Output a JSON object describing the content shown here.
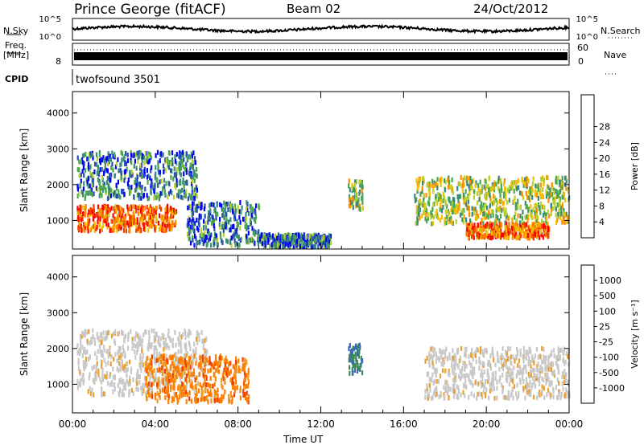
{
  "header": {
    "station": "Prince George (fitACF)",
    "beam": "Beam 02",
    "date": "24/Oct/2012"
  },
  "strip": {
    "nsky_label": "N.Sky",
    "nsearch_label": "N.Search",
    "nsky_ticks": [
      "10^5",
      "10^0"
    ],
    "nsearch_ticks": [
      "10^5",
      "10^0"
    ],
    "freq_label_lines": [
      "Freq.",
      "[MHz]"
    ],
    "freq_ticks": [
      "8"
    ],
    "nave_label": "Nave",
    "nave_ticks": [
      "60",
      "0"
    ],
    "cpid_label": "CPID",
    "cpid_value": "twofsound 3501"
  },
  "axes": {
    "xlabel": "Time UT",
    "x_ticks": [
      "00:00",
      "04:00",
      "08:00",
      "12:00",
      "16:00",
      "20:00",
      "00:00"
    ],
    "ylabel": "Slant Range [km]",
    "y_ticks": [
      "1000",
      "2000",
      "3000",
      "4000"
    ]
  },
  "colorbars": {
    "power": {
      "label": "Power [dB]",
      "ticks": [
        "4",
        "8",
        "12",
        "16",
        "20",
        "24",
        "28"
      ],
      "colors": [
        "#0000ff",
        "#2a4fb0",
        "#3a8a7a",
        "#4aa84a",
        "#b8d030",
        "#f0c000",
        "#ff8c00",
        "#f04000",
        "#ff0000"
      ]
    },
    "velocity": {
      "label": "Velocity [m s⁻¹]",
      "ticks": [
        "1000",
        "500",
        "100",
        "25",
        "-25",
        "-100",
        "-500",
        "-1000"
      ],
      "colors": [
        "#1a3aa8",
        "#3a68b8",
        "#3a8a5a",
        "#60c040",
        "#c8c8c8",
        "#e8a030",
        "#ff8000",
        "#f04000",
        "#ff0000"
      ]
    }
  },
  "chart_data": [
    {
      "type": "heatmap",
      "panel": "power",
      "x_unit": "hours UT",
      "xlim": [
        0,
        24
      ],
      "ylim": [
        200,
        4600
      ],
      "cells": [
        {
          "t0": 0.2,
          "t1": 5.0,
          "r0": 700,
          "r1": 1400,
          "level": "strong"
        },
        {
          "t0": 0.2,
          "t1": 6.0,
          "r0": 1600,
          "r1": 2900,
          "level": "weak"
        },
        {
          "t0": 5.5,
          "t1": 9.0,
          "r0": 300,
          "r1": 1500,
          "level": "weak"
        },
        {
          "t0": 9.0,
          "t1": 12.5,
          "r0": 250,
          "r1": 600,
          "level": "weak"
        },
        {
          "t0": 13.3,
          "t1": 14.0,
          "r0": 1300,
          "r1": 2100,
          "level": "medium"
        },
        {
          "t0": 16.5,
          "t1": 24.0,
          "r0": 900,
          "r1": 2200,
          "level": "medium"
        },
        {
          "t0": 19.0,
          "t1": 23.0,
          "r0": 500,
          "r1": 900,
          "level": "strong"
        }
      ]
    },
    {
      "type": "heatmap",
      "panel": "velocity",
      "x_unit": "hours UT",
      "xlim": [
        0,
        24
      ],
      "ylim": [
        200,
        4600
      ],
      "cells": [
        {
          "t0": 0.2,
          "t1": 6.5,
          "r0": 700,
          "r1": 2500,
          "level": "ground"
        },
        {
          "t0": 3.5,
          "t1": 8.5,
          "r0": 500,
          "r1": 1800,
          "level": "away"
        },
        {
          "t0": 13.3,
          "t1": 14.0,
          "r0": 1300,
          "r1": 2100,
          "level": "toward"
        },
        {
          "t0": 17.0,
          "t1": 24.0,
          "r0": 600,
          "r1": 2000,
          "level": "ground"
        }
      ]
    }
  ]
}
